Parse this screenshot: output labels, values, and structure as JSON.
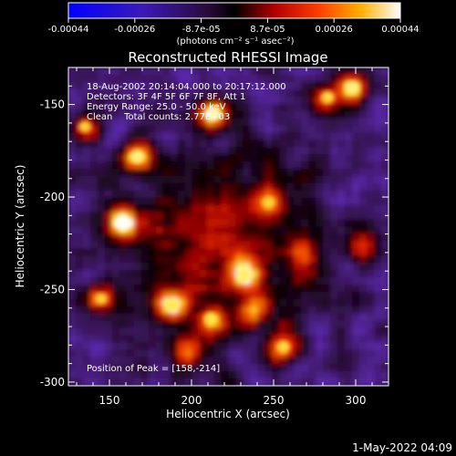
{
  "colorbar": {
    "ticks": [
      "-0.00044",
      "-0.00026",
      "-8.7e-05",
      "8.7e-05",
      "0.00026",
      "0.00044"
    ],
    "units": "(photons cm⁻² s⁻¹ asec⁻²)"
  },
  "chart_data": {
    "type": "heatmap",
    "title": "Reconstructed RHESSI Image",
    "xlabel": "Heliocentric X (arcsec)",
    "ylabel": "Heliocentric Y (arcsec)",
    "xlim": [
      125,
      320
    ],
    "ylim": [
      -302,
      -130
    ],
    "xticks": [
      150,
      200,
      250,
      300
    ],
    "yticks": [
      -150,
      -200,
      -250,
      -300
    ],
    "value_range": [
      -0.00044,
      0.00044
    ],
    "colormap": "blue-purple-black-red-orange-yellow-white",
    "peak_position": [
      158,
      -214
    ],
    "sources": [
      {
        "x": 158,
        "y": -214,
        "intensity": 1.0
      },
      {
        "x": 213,
        "y": -155,
        "intensity": 0.9
      },
      {
        "x": 167,
        "y": -178,
        "intensity": 0.8
      },
      {
        "x": 298,
        "y": -141,
        "intensity": 0.8
      },
      {
        "x": 283,
        "y": -146,
        "intensity": 0.65
      },
      {
        "x": 232,
        "y": -242,
        "intensity": 0.75
      },
      {
        "x": 212,
        "y": -266,
        "intensity": 0.7
      },
      {
        "x": 188,
        "y": -258,
        "intensity": 0.7
      },
      {
        "x": 256,
        "y": -281,
        "intensity": 0.65
      },
      {
        "x": 135,
        "y": -162,
        "intensity": 0.6
      },
      {
        "x": 247,
        "y": -203,
        "intensity": 0.6
      },
      {
        "x": 145,
        "y": -255,
        "intensity": 0.6
      },
      {
        "x": 268,
        "y": -230,
        "intensity": 0.5
      },
      {
        "x": 238,
        "y": -262,
        "intensity": 0.55
      },
      {
        "x": 305,
        "y": -226,
        "intensity": 0.55
      },
      {
        "x": 198,
        "y": -285,
        "intensity": 0.55
      }
    ],
    "annotations": [
      "18-Aug-2002 20:14:04.000 to 20:17:12.000",
      "Detectors: 3F 4F 5F 6F 7F 8F, Att 1",
      "Energy Range: 25.0 - 50.0 keV",
      "Clean    Total counts: 2.77E+03"
    ],
    "peak_label": "Position of Peak = [158,-214]"
  },
  "footer": {
    "date": "1-May-2022 04:09"
  }
}
